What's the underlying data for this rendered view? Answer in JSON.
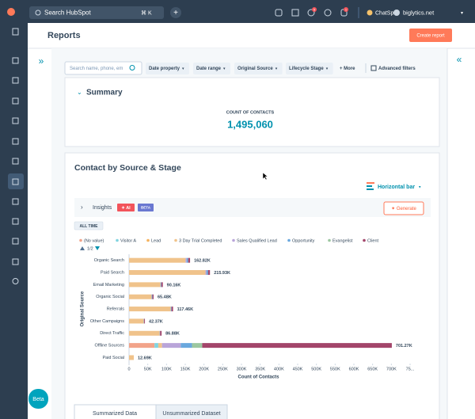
{
  "topbar": {
    "search": "Search HubSpot",
    "shortcut": "⌘ K",
    "badge_1": "5",
    "badge_2": "1",
    "chatspot": "ChatSpot",
    "account": "biglytics.net"
  },
  "header": {
    "title": "Reports",
    "button": "Create report"
  },
  "filters": {
    "search_placeholder": "Search name, phone, em",
    "items": [
      "Date property",
      "Date range",
      "Original Source",
      "Lifecycle Stage"
    ],
    "more": "+ More",
    "advanced": "Advanced filters"
  },
  "summary": {
    "title": "Summary",
    "label": "COUNT OF CONTACTS",
    "value": "1,495,060"
  },
  "report": {
    "title": "Contact by Source & Stage",
    "chart_type": "Horizontal bar",
    "insights": "Insights",
    "ai_badge": "✦ AI",
    "beta_badge": "BETA",
    "generate": "✦ Generate",
    "range": "ALL TIME",
    "legend_page": "1/2"
  },
  "chart_data": {
    "type": "horizontal_stacked_bar",
    "xlabel": "Count of Contacts",
    "ylabel": "Original Source",
    "categories": [
      "Organic Search",
      "Paid Search",
      "Email Marketing",
      "Organic Social",
      "Referrals",
      "Other Campaigns",
      "Direct Traffic",
      "Offline Sources",
      "Paid Social"
    ],
    "series": [
      {
        "name": "(No value)",
        "color": "#f2a48a",
        "values": [
          0,
          0,
          0,
          0,
          0,
          0,
          0,
          68000,
          0
        ]
      },
      {
        "name": "Visitor A",
        "color": "#81d4e0",
        "values": [
          0,
          0,
          0,
          0,
          0,
          0,
          0,
          10000,
          0
        ]
      },
      {
        "name": "Lead",
        "color": "#f5b35e",
        "values": [
          0,
          0,
          0,
          0,
          0,
          0,
          0,
          0,
          0
        ]
      },
      {
        "name": "3 Day Trial Completed",
        "color": "#f0c38b",
        "values": [
          150820,
          203930,
          84160,
          60480,
          111460,
          39370,
          81880,
          10000,
          12690
        ]
      },
      {
        "name": "Sales Qualified Lead",
        "color": "#b9a5d9",
        "values": [
          3000,
          3000,
          0,
          0,
          0,
          0,
          0,
          50000,
          0
        ]
      },
      {
        "name": "Opportunity",
        "color": "#6aa8de",
        "values": [
          4000,
          4000,
          2000,
          2000,
          2000,
          1000,
          1000,
          30000,
          0
        ]
      },
      {
        "name": "Evangelist",
        "color": "#9cc7a0",
        "values": [
          0,
          0,
          0,
          0,
          0,
          0,
          0,
          27270,
          0
        ]
      },
      {
        "name": "Client",
        "color": "#a3456a",
        "values": [
          5000,
          5000,
          4000,
          3000,
          4000,
          2000,
          4000,
          506000,
          0
        ]
      }
    ],
    "totals": [
      162820,
      215930,
      90160,
      65480,
      117460,
      42370,
      86880,
      701270,
      12690
    ],
    "total_labels": [
      "162.82K",
      "215.93K",
      "90.16K",
      "65.48K",
      "117.46K",
      "42.37K",
      "86.88K",
      "701.27K",
      "12.69K"
    ],
    "xlim": [
      0,
      750000
    ],
    "xticks": [
      0,
      {
        "value": 50000,
        "label": "50K"
      },
      {
        "value": 100000,
        "label": "100K"
      },
      {
        "value": 150000,
        "label": "150K"
      },
      {
        "value": 200000,
        "label": "200K"
      },
      {
        "value": 250000,
        "label": "250K"
      },
      {
        "value": 300000,
        "label": "300K"
      },
      {
        "value": 350000,
        "label": "350K"
      },
      {
        "value": 400000,
        "label": "400K"
      },
      {
        "value": 450000,
        "label": "450K"
      },
      {
        "value": 500000,
        "label": "500K"
      },
      {
        "value": 550000,
        "label": "550K"
      },
      {
        "value": 600000,
        "label": "600K"
      },
      {
        "value": 650000,
        "label": "650K"
      },
      {
        "value": 700000,
        "label": "700K"
      },
      {
        "value": 750000,
        "label": "75..."
      }
    ]
  },
  "tabs": [
    "Summarized Data",
    "Unsummarized Dataset"
  ],
  "beta": "Beta"
}
